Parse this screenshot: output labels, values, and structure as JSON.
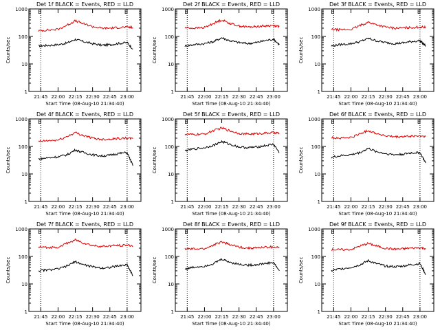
{
  "chart_data": [
    {
      "type": "line",
      "title": "Det 1f BLACK = Events, RED = LLD",
      "ylabel": "Counts/sec",
      "xlabel": "Start Time (08-Aug-10 21:34:40)",
      "x_ticks": [
        "21:45",
        "22:00",
        "22:15",
        "22:30",
        "22:45",
        "23:00"
      ],
      "y_ticks": [
        "1",
        "10",
        "100",
        "1000"
      ],
      "ylim": [
        1,
        1000
      ],
      "yscale": "log",
      "markers": [
        {
          "label": "E",
          "at": "21:45"
        },
        {
          "label": "E",
          "at": "23:00"
        }
      ],
      "series": [
        {
          "name": "BLACK = Events",
          "color": "#000000",
          "x": [
            "21:43",
            "21:50",
            "22:00",
            "22:08",
            "22:15",
            "22:22",
            "22:30",
            "22:38",
            "22:45",
            "22:52",
            "23:00",
            "23:05"
          ],
          "values": [
            45,
            47,
            50,
            58,
            78,
            65,
            55,
            48,
            50,
            55,
            60,
            35
          ]
        },
        {
          "name": "RED = LLD",
          "color": "#e00000",
          "x": [
            "21:43",
            "21:50",
            "22:00",
            "22:08",
            "22:15",
            "22:22",
            "22:30",
            "22:38",
            "22:45",
            "22:52",
            "23:00",
            "23:05"
          ],
          "values": [
            160,
            170,
            180,
            260,
            370,
            290,
            230,
            200,
            200,
            210,
            220,
            210
          ]
        }
      ]
    },
    {
      "type": "line",
      "title": "Det 2f BLACK = Events, RED = LLD",
      "ylabel": "Counts/sec",
      "xlabel": "Start Time (08-Aug-10 21:34:40)",
      "x_ticks": [
        "21:45",
        "22:00",
        "22:15",
        "22:30",
        "22:45",
        "23:00"
      ],
      "y_ticks": [
        "1",
        "10",
        "100",
        "1000"
      ],
      "ylim": [
        1,
        1000
      ],
      "yscale": "log",
      "markers": [
        {
          "label": "E",
          "at": "21:45"
        },
        {
          "label": "E",
          "at": "23:00"
        }
      ],
      "series": [
        {
          "name": "BLACK = Events",
          "color": "#000000",
          "x": [
            "21:43",
            "21:50",
            "22:00",
            "22:08",
            "22:15",
            "22:22",
            "22:30",
            "22:38",
            "22:45",
            "22:52",
            "23:00",
            "23:05"
          ],
          "values": [
            45,
            50,
            55,
            65,
            90,
            70,
            60,
            55,
            60,
            70,
            80,
            50
          ]
        },
        {
          "name": "RED = LLD",
          "color": "#e00000",
          "x": [
            "21:43",
            "21:50",
            "22:00",
            "22:08",
            "22:15",
            "22:22",
            "22:30",
            "22:38",
            "22:45",
            "22:52",
            "23:00",
            "23:05"
          ],
          "values": [
            210,
            200,
            210,
            300,
            400,
            300,
            240,
            220,
            230,
            240,
            250,
            230
          ]
        }
      ]
    },
    {
      "type": "line",
      "title": "Det 3f BLACK = Events, RED = LLD",
      "ylabel": "Counts/sec",
      "xlabel": "Start Time (08-Aug-10 21:34:40)",
      "x_ticks": [
        "21:45",
        "22:00",
        "22:15",
        "22:30",
        "22:45",
        "23:00"
      ],
      "y_ticks": [
        "1",
        "10",
        "100",
        "1000"
      ],
      "ylim": [
        1,
        1000
      ],
      "yscale": "log",
      "markers": [
        {
          "label": "E",
          "at": "21:45"
        },
        {
          "label": "E",
          "at": "23:00"
        }
      ],
      "series": [
        {
          "name": "BLACK = Events",
          "color": "#000000",
          "x": [
            "21:43",
            "21:50",
            "22:00",
            "22:08",
            "22:15",
            "22:22",
            "22:30",
            "22:38",
            "22:45",
            "22:52",
            "23:00",
            "23:05"
          ],
          "values": [
            45,
            50,
            55,
            65,
            85,
            70,
            60,
            55,
            58,
            65,
            70,
            45
          ]
        },
        {
          "name": "RED = LLD",
          "color": "#e00000",
          "x": [
            "21:43",
            "21:50",
            "22:00",
            "22:08",
            "22:15",
            "22:22",
            "22:30",
            "22:38",
            "22:45",
            "22:52",
            "23:00",
            "23:05"
          ],
          "values": [
            180,
            175,
            180,
            250,
            330,
            270,
            220,
            200,
            205,
            210,
            220,
            215
          ]
        }
      ]
    },
    {
      "type": "line",
      "title": "Det 4f BLACK = Events, RED = LLD",
      "ylabel": "Counts/sec",
      "xlabel": "Start Time (08-Aug-10 21:34:40)",
      "x_ticks": [
        "21:45",
        "22:00",
        "22:15",
        "22:30",
        "22:45",
        "23:00"
      ],
      "y_ticks": [
        "1",
        "10",
        "100",
        "1000"
      ],
      "ylim": [
        1,
        1000
      ],
      "yscale": "log",
      "markers": [
        {
          "label": "E",
          "at": "21:45"
        },
        {
          "label": "E",
          "at": "23:00"
        }
      ],
      "series": [
        {
          "name": "BLACK = Events",
          "color": "#000000",
          "x": [
            "21:43",
            "21:50",
            "22:00",
            "22:08",
            "22:15",
            "22:22",
            "22:30",
            "22:38",
            "22:45",
            "22:52",
            "23:00",
            "23:05"
          ],
          "values": [
            35,
            38,
            42,
            50,
            75,
            60,
            50,
            45,
            48,
            55,
            60,
            20
          ]
        },
        {
          "name": "RED = LLD",
          "color": "#e00000",
          "x": [
            "21:43",
            "21:50",
            "22:00",
            "22:08",
            "22:15",
            "22:22",
            "22:30",
            "22:38",
            "22:45",
            "22:52",
            "23:00",
            "23:05"
          ],
          "values": [
            150,
            160,
            170,
            230,
            320,
            250,
            200,
            180,
            185,
            195,
            200,
            190
          ]
        }
      ]
    },
    {
      "type": "line",
      "title": "Det 5f BLACK = Events, RED = LLD",
      "ylabel": "Counts/sec",
      "xlabel": "Start Time (08-Aug-10 21:34:40)",
      "x_ticks": [
        "21:45",
        "22:00",
        "22:15",
        "22:30",
        "22:45",
        "23:00"
      ],
      "y_ticks": [
        "1",
        "10",
        "100",
        "1000"
      ],
      "ylim": [
        1,
        1000
      ],
      "yscale": "log",
      "markers": [
        {
          "label": "E",
          "at": "21:45"
        },
        {
          "label": "E",
          "at": "23:00"
        }
      ],
      "series": [
        {
          "name": "BLACK = Events",
          "color": "#000000",
          "x": [
            "21:43",
            "21:50",
            "22:00",
            "22:08",
            "22:15",
            "22:22",
            "22:30",
            "22:38",
            "22:45",
            "22:52",
            "23:00",
            "23:05"
          ],
          "values": [
            70,
            80,
            90,
            110,
            150,
            120,
            95,
            90,
            95,
            105,
            120,
            60
          ]
        },
        {
          "name": "RED = LLD",
          "color": "#e00000",
          "x": [
            "21:43",
            "21:50",
            "22:00",
            "22:08",
            "22:15",
            "22:22",
            "22:30",
            "22:38",
            "22:45",
            "22:52",
            "23:00",
            "23:05"
          ],
          "values": [
            280,
            270,
            280,
            380,
            470,
            370,
            300,
            280,
            290,
            300,
            320,
            300
          ]
        }
      ]
    },
    {
      "type": "line",
      "title": "Det 6f BLACK = Events, RED = LLD",
      "ylabel": "Counts/sec",
      "xlabel": "Start Time (08-Aug-10 21:34:40)",
      "x_ticks": [
        "21:45",
        "22:00",
        "22:15",
        "22:30",
        "22:45",
        "23:00"
      ],
      "y_ticks": [
        "1",
        "10",
        "100",
        "1000"
      ],
      "ylim": [
        1,
        1000
      ],
      "yscale": "log",
      "markers": [
        {
          "label": "E",
          "at": "21:45"
        },
        {
          "label": "E",
          "at": "23:00"
        }
      ],
      "series": [
        {
          "name": "BLACK = Events",
          "color": "#000000",
          "x": [
            "21:43",
            "21:50",
            "22:00",
            "22:08",
            "22:15",
            "22:22",
            "22:30",
            "22:38",
            "22:45",
            "22:52",
            "23:00",
            "23:05"
          ],
          "values": [
            40,
            45,
            50,
            60,
            85,
            65,
            55,
            50,
            52,
            58,
            60,
            25
          ]
        },
        {
          "name": "RED = LLD",
          "color": "#e00000",
          "x": [
            "21:43",
            "21:50",
            "22:00",
            "22:08",
            "22:15",
            "22:22",
            "22:30",
            "22:38",
            "22:45",
            "22:52",
            "23:00",
            "23:05"
          ],
          "values": [
            210,
            200,
            210,
            290,
            380,
            300,
            240,
            220,
            225,
            235,
            240,
            230
          ]
        }
      ]
    },
    {
      "type": "line",
      "title": "Det 7f BLACK = Events, RED = LLD",
      "ylabel": "Counts/sec",
      "xlabel": "Start Time (08-Aug-10 21:34:40)",
      "x_ticks": [
        "21:45",
        "22:00",
        "22:15",
        "22:30",
        "22:45",
        "23:00"
      ],
      "y_ticks": [
        "1",
        "10",
        "100",
        "1000"
      ],
      "ylim": [
        1,
        1000
      ],
      "yscale": "log",
      "markers": [
        {
          "label": "E",
          "at": "21:45"
        },
        {
          "label": "E",
          "at": "23:00"
        }
      ],
      "series": [
        {
          "name": "BLACK = Events",
          "color": "#000000",
          "x": [
            "21:43",
            "21:50",
            "22:00",
            "22:08",
            "22:15",
            "22:22",
            "22:30",
            "22:38",
            "22:45",
            "22:52",
            "23:00",
            "23:05"
          ],
          "values": [
            30,
            32,
            35,
            45,
            65,
            50,
            42,
            38,
            40,
            45,
            50,
            20
          ]
        },
        {
          "name": "RED = LLD",
          "color": "#e00000",
          "x": [
            "21:43",
            "21:50",
            "22:00",
            "22:08",
            "22:15",
            "22:22",
            "22:30",
            "22:38",
            "22:45",
            "22:52",
            "23:00",
            "23:05"
          ],
          "values": [
            220,
            210,
            220,
            300,
            400,
            310,
            250,
            230,
            240,
            250,
            260,
            240
          ]
        }
      ]
    },
    {
      "type": "line",
      "title": "Det 8f BLACK = Events, RED = LLD",
      "ylabel": "Counts/sec",
      "xlabel": "Start Time (08-Aug-10 21:34:40)",
      "x_ticks": [
        "21:45",
        "22:00",
        "22:15",
        "22:30",
        "22:45",
        "23:00"
      ],
      "y_ticks": [
        "1",
        "10",
        "100",
        "1000"
      ],
      "ylim": [
        1,
        1000
      ],
      "yscale": "log",
      "markers": [
        {
          "label": "E",
          "at": "21:45"
        },
        {
          "label": "E",
          "at": "23:00"
        }
      ],
      "series": [
        {
          "name": "BLACK = Events",
          "color": "#000000",
          "x": [
            "21:43",
            "21:50",
            "22:00",
            "22:08",
            "22:15",
            "22:22",
            "22:30",
            "22:38",
            "22:45",
            "22:52",
            "23:00",
            "23:05"
          ],
          "values": [
            35,
            40,
            45,
            55,
            80,
            62,
            52,
            48,
            50,
            55,
            60,
            30
          ]
        },
        {
          "name": "RED = LLD",
          "color": "#e00000",
          "x": [
            "21:43",
            "21:50",
            "22:00",
            "22:08",
            "22:15",
            "22:22",
            "22:30",
            "22:38",
            "22:45",
            "22:52",
            "23:00",
            "23:05"
          ],
          "values": [
            190,
            185,
            190,
            260,
            340,
            270,
            220,
            200,
            205,
            215,
            220,
            210
          ]
        }
      ]
    },
    {
      "type": "line",
      "title": "Det 9f BLACK = Events, RED = LLD",
      "ylabel": "Counts/sec",
      "xlabel": "Start Time (08-Aug-10 21:34:40)",
      "x_ticks": [
        "21:45",
        "22:00",
        "22:15",
        "22:30",
        "22:45",
        "23:00"
      ],
      "y_ticks": [
        "1",
        "10",
        "100",
        "1000"
      ],
      "ylim": [
        1,
        1000
      ],
      "yscale": "log",
      "markers": [
        {
          "label": "E",
          "at": "21:45"
        },
        {
          "label": "E",
          "at": "23:00"
        }
      ],
      "series": [
        {
          "name": "BLACK = Events",
          "color": "#000000",
          "x": [
            "21:43",
            "21:50",
            "22:00",
            "22:08",
            "22:15",
            "22:22",
            "22:30",
            "22:38",
            "22:45",
            "22:52",
            "23:00",
            "23:05"
          ],
          "values": [
            30,
            35,
            40,
            50,
            70,
            55,
            45,
            42,
            45,
            50,
            55,
            22
          ]
        },
        {
          "name": "RED = LLD",
          "color": "#e00000",
          "x": [
            "21:43",
            "21:50",
            "22:00",
            "22:08",
            "22:15",
            "22:22",
            "22:30",
            "22:38",
            "22:45",
            "22:52",
            "23:00",
            "23:05"
          ],
          "values": [
            180,
            175,
            180,
            240,
            300,
            240,
            200,
            185,
            190,
            200,
            210,
            195
          ]
        }
      ]
    }
  ]
}
